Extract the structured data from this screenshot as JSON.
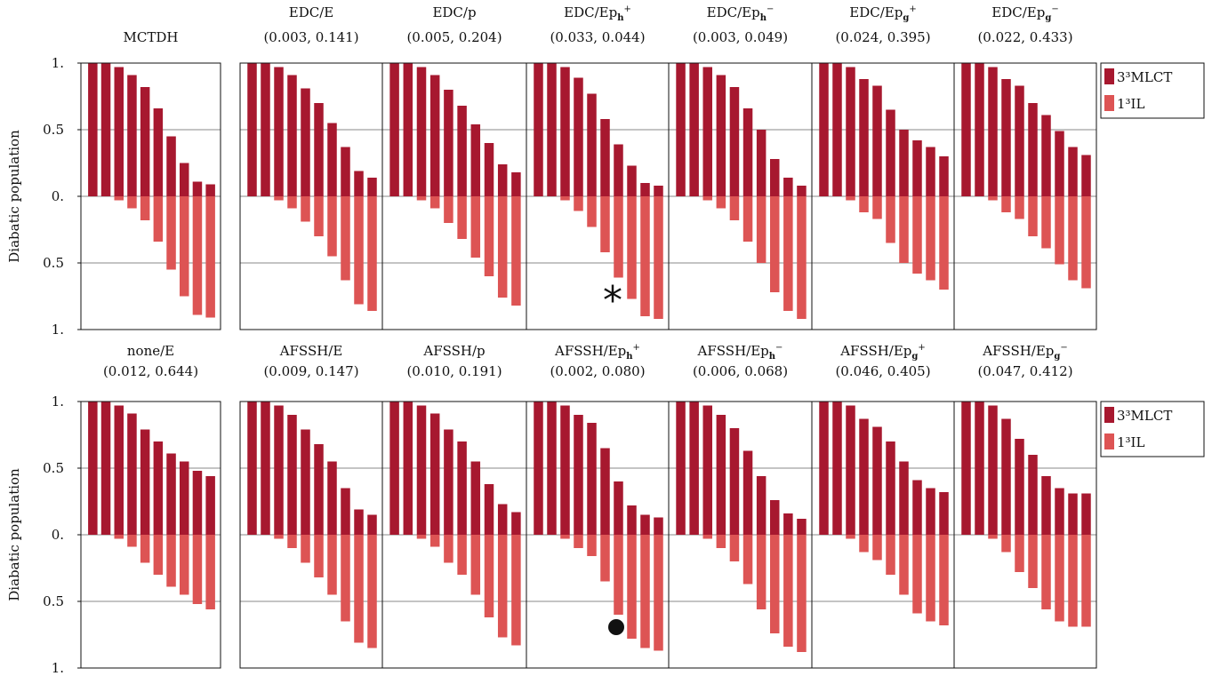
{
  "chart_data": {
    "type": "bar",
    "legend": {
      "placement": "right",
      "entries": [
        "3³MLCT",
        "1³IL"
      ]
    },
    "colors": {
      "3³MLCT": "#a7182f",
      "1³IL": "#dd5454"
    },
    "grid": true,
    "yticks": [
      "1.",
      "0.5",
      "0.",
      "0.5",
      "1."
    ],
    "ylabel": "Diabatic population",
    "ylim": [
      -1,
      1
    ],
    "rows": [
      {
        "panels": [
          {
            "title": "MCTDH",
            "subtitle": "",
            "marker": "",
            "mlct": [
              1.0,
              1.0,
              0.97,
              0.91,
              0.82,
              0.66,
              0.45,
              0.25,
              0.11,
              0.09
            ],
            "il": [
              0.0,
              0.0,
              0.03,
              0.09,
              0.18,
              0.34,
              0.55,
              0.75,
              0.89,
              0.91
            ]
          },
          {
            "title": "EDC/E",
            "subtitle": "(0.003, 0.141)",
            "marker": "",
            "mlct": [
              1.0,
              1.0,
              0.97,
              0.91,
              0.81,
              0.7,
              0.55,
              0.37,
              0.19,
              0.14
            ],
            "il": [
              0.0,
              0.0,
              0.03,
              0.09,
              0.19,
              0.3,
              0.45,
              0.63,
              0.81,
              0.86
            ]
          },
          {
            "title": "EDC/p",
            "subtitle": "(0.005, 0.204)",
            "marker": "",
            "mlct": [
              1.0,
              1.0,
              0.97,
              0.91,
              0.8,
              0.68,
              0.54,
              0.4,
              0.24,
              0.18
            ],
            "il": [
              0.0,
              0.0,
              0.03,
              0.09,
              0.2,
              0.32,
              0.46,
              0.6,
              0.76,
              0.82
            ]
          },
          {
            "title": "EDC/Ep",
            "subtitle": "(0.033, 0.044)",
            "marker": "asterisk",
            "mlct": [
              1.0,
              1.0,
              0.97,
              0.89,
              0.77,
              0.58,
              0.39,
              0.23,
              0.1,
              0.08
            ],
            "il": [
              0.0,
              0.0,
              0.03,
              0.11,
              0.23,
              0.42,
              0.61,
              0.77,
              0.9,
              0.92
            ]
          },
          {
            "title": "EDC/Ep",
            "subtitle": "(0.003, 0.049)",
            "marker": "",
            "mlct": [
              1.0,
              1.0,
              0.97,
              0.91,
              0.82,
              0.66,
              0.5,
              0.28,
              0.14,
              0.08
            ],
            "il": [
              0.0,
              0.0,
              0.03,
              0.09,
              0.18,
              0.34,
              0.5,
              0.72,
              0.86,
              0.92
            ]
          },
          {
            "title": "EDC/Ep",
            "subtitle": "(0.024, 0.395)",
            "marker": "",
            "mlct": [
              1.0,
              1.0,
              0.97,
              0.88,
              0.83,
              0.65,
              0.5,
              0.42,
              0.37,
              0.3
            ],
            "il": [
              0.0,
              0.0,
              0.03,
              0.12,
              0.17,
              0.35,
              0.5,
              0.58,
              0.63,
              0.7
            ]
          },
          {
            "title": "EDC/Ep",
            "subtitle": "(0.022, 0.433)",
            "marker": "",
            "mlct": [
              1.0,
              1.0,
              0.97,
              0.88,
              0.83,
              0.7,
              0.61,
              0.49,
              0.37,
              0.31
            ],
            "il": [
              0.0,
              0.0,
              0.03,
              0.12,
              0.17,
              0.3,
              0.39,
              0.51,
              0.63,
              0.69
            ]
          }
        ]
      },
      {
        "panels": [
          {
            "title": "none/E",
            "subtitle": "(0.012, 0.644)",
            "marker": "",
            "mlct": [
              1.0,
              1.0,
              0.97,
              0.91,
              0.79,
              0.7,
              0.61,
              0.55,
              0.48,
              0.44
            ],
            "il": [
              0.0,
              0.0,
              0.03,
              0.09,
              0.21,
              0.3,
              0.39,
              0.45,
              0.52,
              0.56
            ]
          },
          {
            "title": "AFSSH/E",
            "subtitle": "(0.009, 0.147)",
            "marker": "",
            "mlct": [
              1.0,
              1.0,
              0.97,
              0.9,
              0.79,
              0.68,
              0.55,
              0.35,
              0.19,
              0.15
            ],
            "il": [
              0.0,
              0.0,
              0.03,
              0.1,
              0.21,
              0.32,
              0.45,
              0.65,
              0.81,
              0.85
            ]
          },
          {
            "title": "AFSSH/p",
            "subtitle": "(0.010, 0.191)",
            "marker": "",
            "mlct": [
              1.0,
              1.0,
              0.97,
              0.91,
              0.79,
              0.7,
              0.55,
              0.38,
              0.23,
              0.17
            ],
            "il": [
              0.0,
              0.0,
              0.03,
              0.09,
              0.21,
              0.3,
              0.45,
              0.62,
              0.77,
              0.83
            ]
          },
          {
            "title": "AFSSH/Ep",
            "subtitle": "(0.002, 0.080)",
            "marker": "dot",
            "mlct": [
              1.0,
              1.0,
              0.97,
              0.9,
              0.84,
              0.65,
              0.4,
              0.22,
              0.15,
              0.13
            ],
            "il": [
              0.0,
              0.0,
              0.03,
              0.1,
              0.16,
              0.35,
              0.6,
              0.78,
              0.85,
              0.87
            ]
          },
          {
            "title": "AFSSH/Ep",
            "subtitle": "(0.006, 0.068)",
            "marker": "",
            "mlct": [
              1.0,
              1.0,
              0.97,
              0.9,
              0.8,
              0.63,
              0.44,
              0.26,
              0.16,
              0.12
            ],
            "il": [
              0.0,
              0.0,
              0.03,
              0.1,
              0.2,
              0.37,
              0.56,
              0.74,
              0.84,
              0.88
            ]
          },
          {
            "title": "AFSSH/Ep",
            "subtitle": "(0.046, 0.405)",
            "marker": "",
            "mlct": [
              1.0,
              1.0,
              0.97,
              0.87,
              0.81,
              0.7,
              0.55,
              0.41,
              0.35,
              0.32
            ],
            "il": [
              0.0,
              0.0,
              0.03,
              0.13,
              0.19,
              0.3,
              0.45,
              0.59,
              0.65,
              0.68
            ]
          },
          {
            "title": "AFSSH/Ep",
            "subtitle": "(0.047, 0.412)",
            "marker": "",
            "mlct": [
              1.0,
              1.0,
              0.97,
              0.87,
              0.72,
              0.6,
              0.44,
              0.35,
              0.31,
              0.31
            ],
            "il": [
              0.0,
              0.0,
              0.03,
              0.13,
              0.28,
              0.4,
              0.56,
              0.65,
              0.69,
              0.69
            ]
          }
        ]
      }
    ]
  }
}
